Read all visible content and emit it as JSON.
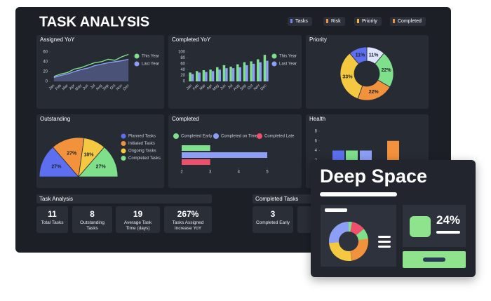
{
  "header": {
    "title": "TASK ANALYSIS",
    "legend": [
      {
        "label": "Tasks",
        "color": "#6f86f2"
      },
      {
        "label": "Risk",
        "color": "#f2923c"
      },
      {
        "label": "Priority",
        "color": "#f2b43a"
      },
      {
        "label": "Completed",
        "color": "#f2923c"
      }
    ]
  },
  "panels": {
    "assigned": {
      "type": "line",
      "title": "Assigned YoY",
      "categories": [
        "Jan",
        "Feb",
        "Mar",
        "Apr",
        "May",
        "Jun",
        "Jul",
        "Aug",
        "Sep",
        "Oct",
        "Nov",
        "Dec"
      ],
      "ylim": [
        0,
        60
      ],
      "yticks": [
        0,
        20,
        40,
        60
      ],
      "series": [
        {
          "name": "This Year",
          "color": "#7ee08a",
          "values": [
            10,
            15,
            18,
            25,
            28,
            33,
            38,
            40,
            45,
            43,
            50,
            55
          ]
        },
        {
          "name": "Last Year",
          "color": "#8c9ef5",
          "area": true,
          "values": [
            8,
            12,
            15,
            20,
            24,
            27,
            32,
            35,
            38,
            40,
            42,
            45
          ]
        }
      ]
    },
    "completed_yoy": {
      "type": "bar",
      "title": "Completed YoY",
      "categories": [
        "Jan",
        "Feb",
        "Mar",
        "Apr",
        "May",
        "Jun",
        "Jul",
        "Aug",
        "Sep",
        "Oct",
        "Nov",
        "Dec"
      ],
      "ylim": [
        0,
        100
      ],
      "yticks": [
        0,
        20,
        40,
        60,
        80,
        100
      ],
      "series": [
        {
          "name": "This Year",
          "color": "#7ee08a",
          "values": [
            30,
            35,
            38,
            40,
            48,
            55,
            50,
            58,
            65,
            68,
            75,
            90
          ]
        },
        {
          "name": "Last Year",
          "color": "#8c9ef5",
          "values": [
            25,
            30,
            32,
            35,
            40,
            45,
            45,
            48,
            55,
            60,
            65,
            70
          ]
        }
      ]
    },
    "priority": {
      "type": "donut",
      "title": "Priority",
      "values": [
        11,
        22,
        22,
        33,
        11
      ],
      "value_labels": [
        "11%",
        "22%",
        "22%",
        "33%",
        "11%"
      ],
      "colors": [
        "#dfe5ff",
        "#7ee08a",
        "#f2923c",
        "#f5c842",
        "#5d6ff0"
      ]
    },
    "outstanding": {
      "type": "halfpie",
      "title": "Outstanding",
      "categories": [
        "Planned Tasks",
        "Initiated Tasks",
        "Ongoing Tasks",
        "Completed Tasks"
      ],
      "values": [
        27,
        27,
        18,
        27
      ],
      "value_labels": [
        "27%",
        "27%",
        "18%",
        "27%"
      ],
      "colors": [
        "#5d6ff0",
        "#f2923c",
        "#f5c842",
        "#7ee08a"
      ]
    },
    "completed": {
      "type": "hbar",
      "title": "Completed",
      "xlim": [
        2,
        5
      ],
      "xticks": [
        2,
        3,
        4,
        5
      ],
      "series": [
        {
          "name": "Completed Early",
          "color": "#7ee08a",
          "value": 3
        },
        {
          "name": "Completed on Time",
          "color": "#8c9ef5",
          "value": 5
        },
        {
          "name": "Completed Late",
          "color": "#ef4f6a",
          "value": 3
        }
      ]
    },
    "health": {
      "type": "colbar",
      "title": "Health",
      "ylim": [
        0,
        8
      ],
      "yticks": [
        2,
        4,
        6,
        8
      ],
      "values": [
        4,
        4,
        4,
        6
      ],
      "colors": [
        "#5d6ff0",
        "#7ee08a",
        "#8c9ef5",
        "#f2923c"
      ]
    }
  },
  "task_analysis": {
    "title": "Task Analysis",
    "cards": [
      {
        "value": "11",
        "label": "Total Tasks"
      },
      {
        "value": "8",
        "label": "Outstanding Tasks"
      },
      {
        "value": "19",
        "label": "Average Task Time (days)"
      },
      {
        "value": "267%",
        "label": "Tasks Assigned Increase YoY"
      }
    ]
  },
  "completed_tasks": {
    "title": "Completed Tasks",
    "cards": [
      {
        "value": "3",
        "label": "Completed Early"
      }
    ]
  },
  "overlay": {
    "title": "Deep Space",
    "stat": "24%"
  }
}
